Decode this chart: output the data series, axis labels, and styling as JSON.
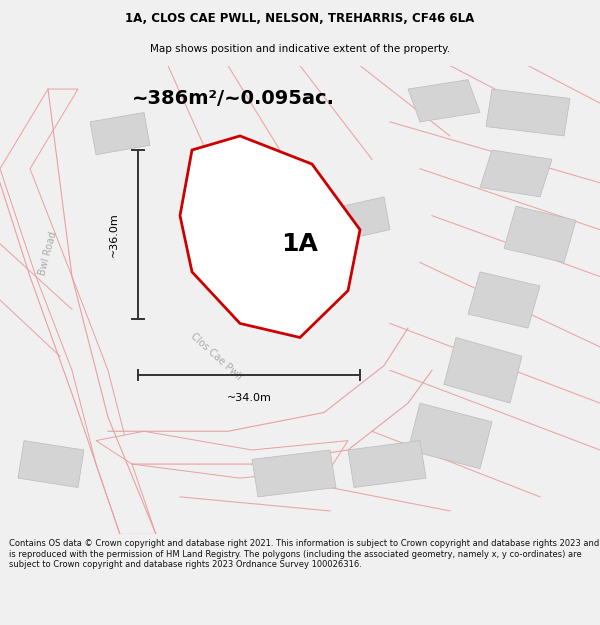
{
  "title_line1": "1A, CLOS CAE PWLL, NELSON, TREHARRIS, CF46 6LA",
  "title_line2": "Map shows position and indicative extent of the property.",
  "area_text": "~386m²/~0.095ac.",
  "label_1A": "1A",
  "dim_horiz": "~34.0m",
  "dim_vert": "~36.0m",
  "road_label_bwl": "Bwl Road",
  "road_label_clos": "Clos Cae Pwll",
  "footer_text": "Contains OS data © Crown copyright and database right 2021. This information is subject to Crown copyright and database rights 2023 and is reproduced with the permission of HM Land Registry. The polygons (including the associated geometry, namely x, y co-ordinates) are subject to Crown copyright and database rights 2023 Ordnance Survey 100026316.",
  "bg_color": "#f0f0f0",
  "map_bg": "#ffffff",
  "plot_color": "#cc0000",
  "road_color": "#e8a0a0",
  "building_color": "#d4d4d4",
  "building_edge_color": "#bbbbbb",
  "dim_line_color": "#333333",
  "road_label_color": "#aaaaaa",
  "title_color": "#000000",
  "footer_color": "#111111",
  "title_fontsize": 8.5,
  "subtitle_fontsize": 7.5,
  "area_fontsize": 14,
  "label_fontsize": 18,
  "road_label_fontsize": 7,
  "dim_fontsize": 8,
  "footer_fontsize": 6
}
